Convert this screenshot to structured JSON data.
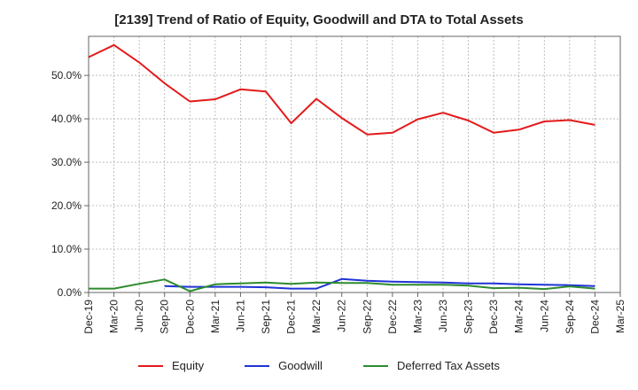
{
  "title": "[2139]  Trend of Ratio of Equity, Goodwill and DTA to Total Assets",
  "colors": {
    "equity": "#e31a1c",
    "goodwill": "#1f33d6",
    "dta": "#2e8b2e",
    "grid": "#b0b0b0",
    "axis": "#666666"
  },
  "chart_data": {
    "type": "line",
    "title": "[2139]  Trend of Ratio of Equity, Goodwill and DTA to Total Assets",
    "xlabel": "",
    "ylabel": "",
    "grid": true,
    "legend_position": "bottom",
    "ylim": [
      0,
      59
    ],
    "y_ticks": [
      "0.0%",
      "10.0%",
      "20.0%",
      "30.0%",
      "40.0%",
      "50.0%"
    ],
    "y_tick_values": [
      0,
      10,
      20,
      30,
      40,
      50
    ],
    "categories": [
      "Dec-19",
      "Mar-20",
      "Jun-20",
      "Sep-20",
      "Dec-20",
      "Mar-21",
      "Jun-21",
      "Sep-21",
      "Dec-21",
      "Mar-22",
      "Jun-22",
      "Sep-22",
      "Dec-22",
      "Mar-23",
      "Jun-23",
      "Sep-23",
      "Dec-23",
      "Mar-24",
      "Jun-24",
      "Sep-24",
      "Dec-24",
      "Mar-25"
    ],
    "series": [
      {
        "name": "Equity",
        "color": "#e31a1c",
        "values": [
          54.2,
          57.0,
          53.0,
          48.2,
          44.0,
          44.5,
          46.8,
          46.3,
          39.0,
          44.6,
          40.2,
          36.4,
          36.8,
          39.9,
          41.4,
          39.6,
          36.8,
          37.5,
          39.4,
          39.7,
          38.6,
          null
        ]
      },
      {
        "name": "Goodwill",
        "color": "#1f33d6",
        "values": [
          null,
          null,
          null,
          1.5,
          1.3,
          1.3,
          1.3,
          1.2,
          0.9,
          0.9,
          3.1,
          2.7,
          2.5,
          2.4,
          2.3,
          2.1,
          2.1,
          1.9,
          1.8,
          1.7,
          1.5,
          null
        ]
      },
      {
        "name": "Deferred Tax Assets",
        "color": "#2e8b2e",
        "values": [
          0.9,
          0.9,
          2.0,
          3.0,
          0.3,
          1.9,
          2.1,
          2.3,
          2.0,
          2.3,
          2.2,
          2.2,
          1.8,
          1.8,
          1.8,
          1.6,
          1.0,
          1.1,
          0.8,
          1.4,
          0.9,
          null
        ]
      }
    ]
  }
}
